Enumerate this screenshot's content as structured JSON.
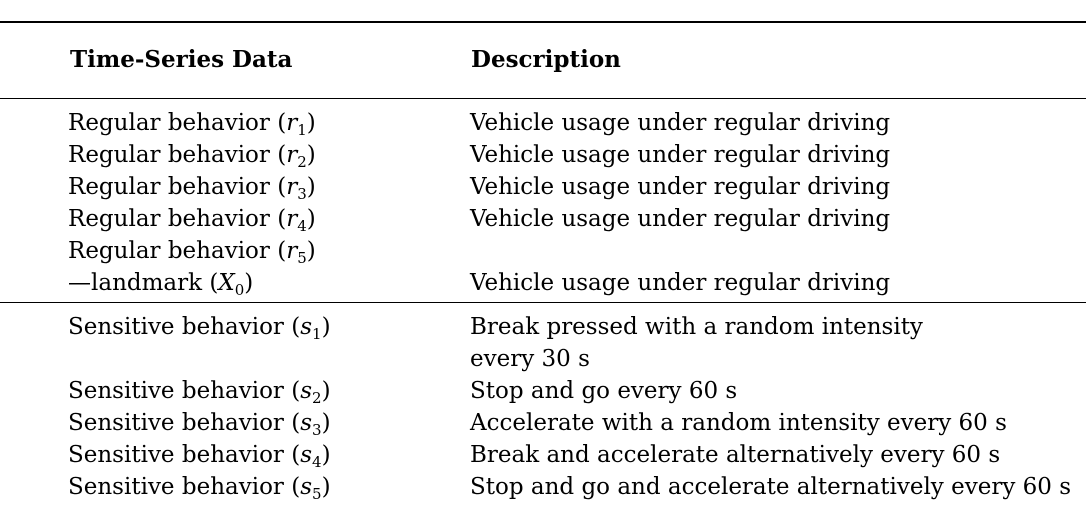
{
  "table": {
    "headers": [
      "Time-Series Data",
      "Description"
    ],
    "regular_rows": [
      {
        "label": "Regular behavior (",
        "sym": "r",
        "sub": "1",
        "close": ")",
        "desc": "Vehicle usage under regular driving"
      },
      {
        "label": "Regular behavior (",
        "sym": "r",
        "sub": "2",
        "close": ")",
        "desc": "Vehicle usage under regular driving"
      },
      {
        "label": "Regular behavior (",
        "sym": "r",
        "sub": "3",
        "close": ")",
        "desc": "Vehicle usage under regular driving"
      },
      {
        "label": "Regular behavior (",
        "sym": "r",
        "sub": "4",
        "close": ")",
        "desc": "Vehicle usage under regular driving"
      },
      {
        "label": "Regular behavior (",
        "sym": "r",
        "sub": "5",
        "close": ")",
        "desc": ""
      },
      {
        "label": "—landmark (",
        "sym": "X",
        "sub": "0",
        "close": ")",
        "desc": "Vehicle usage under regular driving"
      }
    ],
    "sensitive_rows": [
      {
        "label": "Sensitive behavior (",
        "sym": "s",
        "sub": "1",
        "close": ")",
        "desc": "Break pressed with a random intensity"
      },
      {
        "label": "",
        "sym": "",
        "sub": "",
        "close": "",
        "desc": "every 30 s"
      },
      {
        "label": "Sensitive behavior (",
        "sym": "s",
        "sub": "2",
        "close": ")",
        "desc": "Stop and go every 60 s"
      },
      {
        "label": "Sensitive behavior (",
        "sym": "s",
        "sub": "3",
        "close": ")",
        "desc": "Accelerate with a random intensity every 60 s"
      },
      {
        "label": "Sensitive behavior (",
        "sym": "s",
        "sub": "4",
        "close": ")",
        "desc": "Break and accelerate alternatively every 60 s"
      },
      {
        "label": "Sensitive behavior (",
        "sym": "s",
        "sub": "5",
        "close": ")",
        "desc": "Stop and go and accelerate alternatively every 60 s"
      }
    ]
  }
}
